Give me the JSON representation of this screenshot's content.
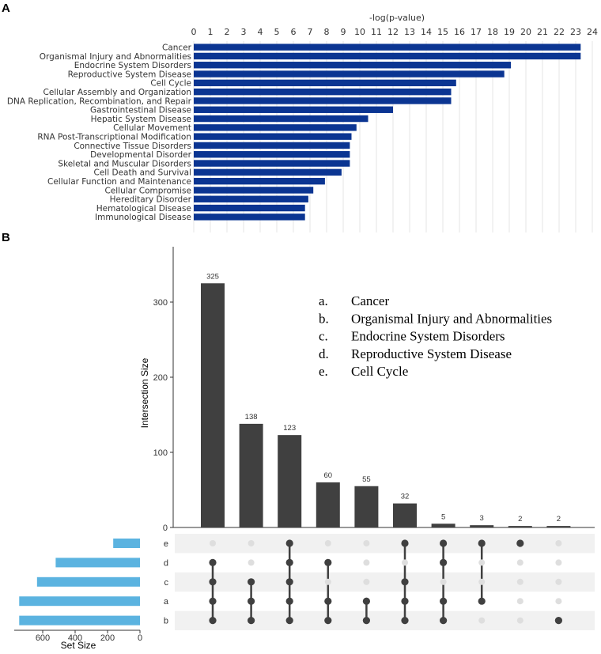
{
  "chart_data": [
    {
      "panel": "A",
      "type": "bar",
      "orientation": "horizontal",
      "xlabel": "-log(p-value)",
      "xlim": [
        0,
        24
      ],
      "xticks": [
        0,
        1,
        2,
        3,
        4,
        5,
        6,
        7,
        8,
        9,
        10,
        11,
        12,
        13,
        14,
        15,
        16,
        17,
        18,
        19,
        20,
        21,
        22,
        23,
        24
      ],
      "bar_color": "#0b3592",
      "categories": [
        "Cancer",
        "Organismal Injury and Abnormalities",
        "Endocrine System Disorders",
        "Reproductive System Disease",
        "Cell Cycle",
        "Cellular Assembly and Organization",
        "DNA Replication, Recombination, and Repair",
        "Gastrointestinal Disease",
        "Hepatic System Disease",
        "Cellular Movement",
        "RNA Post-Transcriptional Modification",
        "Connective Tissue Disorders",
        "Developmental Disorder",
        "Skeletal and Muscular Disorders",
        "Cell Death and Survival",
        "Cellular Function and Maintenance",
        "Cellular Compromise",
        "Hereditary Disorder",
        "Hematological Disease",
        "Immunological Disease"
      ],
      "values": [
        23.3,
        23.3,
        19.1,
        18.7,
        15.8,
        15.5,
        15.5,
        12.0,
        10.5,
        9.8,
        9.5,
        9.4,
        9.4,
        9.4,
        8.9,
        7.9,
        7.2,
        6.9,
        6.7,
        6.7
      ]
    },
    {
      "panel": "B",
      "type": "bar",
      "subtype": "upset",
      "ylabel": "Intersection Size",
      "ylim": [
        0,
        350
      ],
      "yticks": [
        0,
        100,
        200,
        300
      ],
      "bar_color": "#404040",
      "values": [
        325,
        138,
        123,
        60,
        55,
        32,
        5,
        3,
        2,
        2
      ],
      "labels": [
        "325",
        "138",
        "123",
        "60",
        "55",
        "32",
        "5",
        "3",
        "2",
        "2"
      ],
      "sets": [
        "e",
        "d",
        "c",
        "a",
        "b"
      ],
      "memberships": [
        [
          "d",
          "c",
          "a",
          "b"
        ],
        [
          "c",
          "a",
          "b"
        ],
        [
          "e",
          "d",
          "c",
          "a",
          "b"
        ],
        [
          "d",
          "a",
          "b"
        ],
        [
          "a",
          "b"
        ],
        [
          "e",
          "c",
          "a",
          "b"
        ],
        [
          "e",
          "d",
          "a",
          "b"
        ],
        [
          "e",
          "a"
        ],
        [
          "e"
        ],
        [
          "b"
        ]
      ],
      "set_size": {
        "xlabel": "Set Size",
        "xticks": [
          600,
          400,
          200,
          0
        ],
        "xlim": [
          0,
          760
        ],
        "bar_color": "#5bb3e0",
        "values": [
          165,
          520,
          635,
          745,
          745
        ]
      },
      "legend": [
        {
          "key": "a.",
          "text": "Cancer"
        },
        {
          "key": "b.",
          "text": "Organismal Injury and Abnormalities"
        },
        {
          "key": "c.",
          "text": "Endocrine System Disorders"
        },
        {
          "key": "d.",
          "text": "Reproductive System Disease"
        },
        {
          "key": "e.",
          "text": "Cell Cycle"
        }
      ]
    }
  ],
  "panels": {
    "a_letter": "A",
    "b_letter": "B"
  }
}
